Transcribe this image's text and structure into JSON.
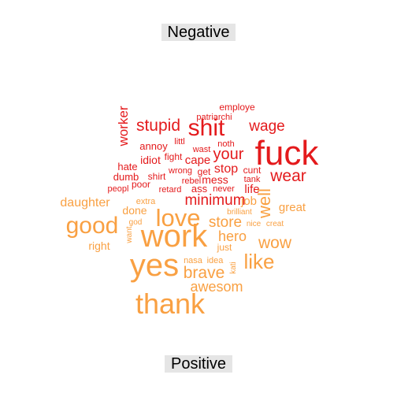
{
  "chart_data": {
    "type": "wordcloud",
    "groups": [
      {
        "label": "Negative",
        "color": "#e41a1c",
        "words": [
          "fuck",
          "shit",
          "stupid",
          "wage",
          "wear",
          "worker",
          "your",
          "employe",
          "patriarchi",
          "annoy",
          "littl",
          "noth",
          "wast",
          "fight",
          "cape",
          "idiot",
          "hate",
          "dumb",
          "shirt",
          "wrong",
          "get",
          "stop",
          "cunt",
          "tank",
          "rebel",
          "mess",
          "poor",
          "peopl",
          "retard",
          "ass",
          "never",
          "life",
          "minimum"
        ]
      },
      {
        "label": "Positive",
        "color": "#f9a042",
        "words": [
          "work",
          "yes",
          "love",
          "thank",
          "good",
          "like",
          "wow",
          "hero",
          "brave",
          "awesom",
          "store",
          "daughter",
          "great",
          "well",
          "job",
          "right",
          "done",
          "extra",
          "god",
          "want",
          "brilliant",
          "nice",
          "creat",
          "nasa",
          "idea",
          "kati",
          "just"
        ]
      }
    ]
  },
  "colors": {
    "negative": "#e41a1c",
    "positive": "#f9a042",
    "label_bg": "#e5e5e5"
  }
}
